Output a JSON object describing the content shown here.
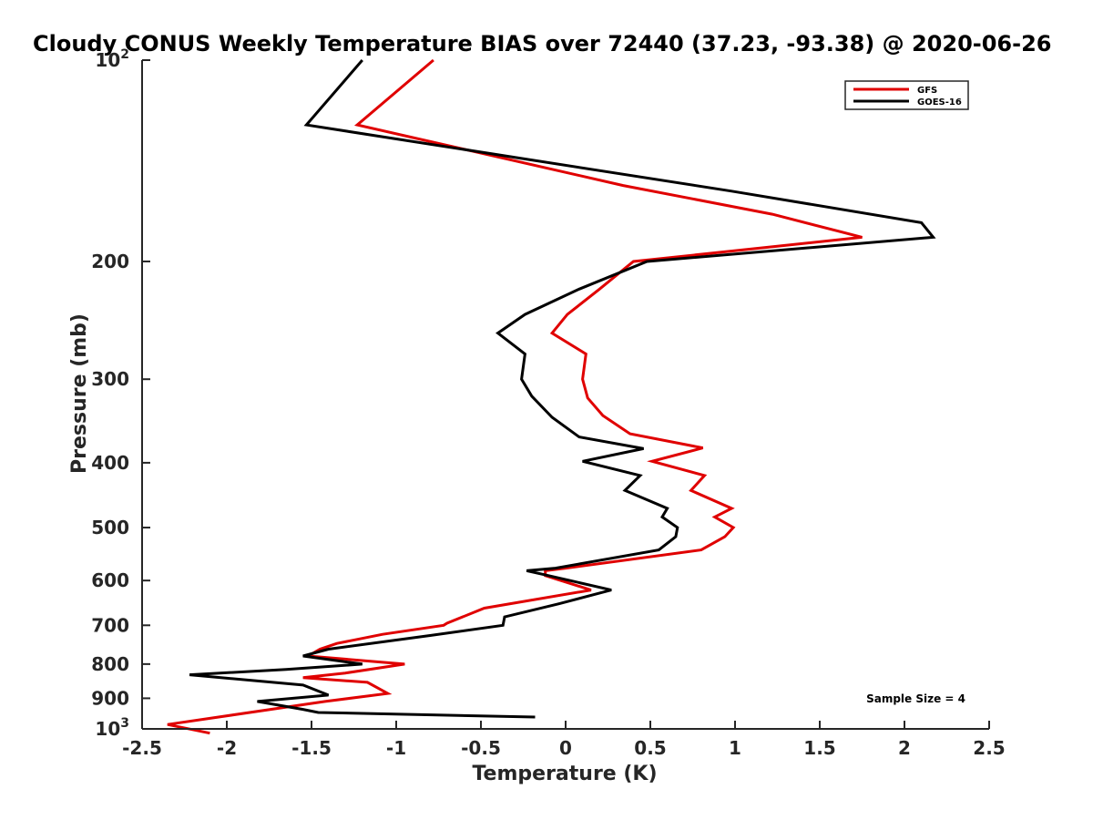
{
  "chart_data": {
    "type": "line",
    "title": "Cloudy CONUS Weekly Temperature BIAS over 72440 (37.23, -93.38) @ 2020-06-26",
    "xlabel": "Temperature (K)",
    "ylabel": "Pressure (mb)",
    "xlim": [
      -2.5,
      2.5
    ],
    "ylim": [
      100,
      1000
    ],
    "yscale": "log",
    "y_reversed": true,
    "grid": false,
    "legend_position": "top-right",
    "x_ticks": [
      "-2.5",
      "-2",
      "-1.5",
      "-1",
      "-0.5",
      "0",
      "0.5",
      "1",
      "1.5",
      "2",
      "2.5"
    ],
    "x_tick_values": [
      -2.5,
      -2,
      -1.5,
      -1,
      -0.5,
      0,
      0.5,
      1,
      1.5,
      2,
      2.5
    ],
    "y_ticks": [
      {
        "value": 100,
        "base": "10",
        "exp": "2"
      },
      {
        "value": 200,
        "label": "200"
      },
      {
        "value": 300,
        "label": "300"
      },
      {
        "value": 400,
        "label": "400"
      },
      {
        "value": 500,
        "label": "500"
      },
      {
        "value": 600,
        "label": "600"
      },
      {
        "value": 700,
        "label": "700"
      },
      {
        "value": 800,
        "label": "800"
      },
      {
        "value": 900,
        "label": "900"
      },
      {
        "value": 1000,
        "base": "10",
        "exp": "3"
      }
    ],
    "annotation": "Sample Size = 4",
    "series": [
      {
        "name": "GFS",
        "color": "#e00000",
        "points": [
          [
            -0.78,
            100
          ],
          [
            -1.23,
            125
          ],
          [
            0.34,
            154
          ],
          [
            1.22,
            170
          ],
          [
            1.75,
            184
          ],
          [
            0.4,
            200
          ],
          [
            0.2,
            220
          ],
          [
            0.01,
            240
          ],
          [
            -0.08,
            256
          ],
          [
            0.12,
            275
          ],
          [
            0.1,
            300
          ],
          [
            0.13,
            320
          ],
          [
            0.22,
            340
          ],
          [
            0.38,
            362
          ],
          [
            0.81,
            380
          ],
          [
            0.51,
            398
          ],
          [
            0.82,
            418
          ],
          [
            0.74,
            440
          ],
          [
            0.98,
            468
          ],
          [
            0.88,
            482
          ],
          [
            0.99,
            500
          ],
          [
            0.94,
            516
          ],
          [
            0.8,
            540
          ],
          [
            0.0,
            575
          ],
          [
            -0.12,
            580
          ],
          [
            -0.12,
            590
          ],
          [
            0.15,
            620
          ],
          [
            -0.48,
            660
          ],
          [
            -0.7,
            695
          ],
          [
            -0.72,
            700
          ],
          [
            -1.08,
            722
          ],
          [
            -1.35,
            745
          ],
          [
            -1.45,
            760
          ],
          [
            -1.52,
            778
          ],
          [
            -0.95,
            800
          ],
          [
            -1.3,
            825
          ],
          [
            -1.55,
            838
          ],
          [
            -1.17,
            852
          ],
          [
            -1.05,
            885
          ],
          [
            -1.42,
            910
          ],
          [
            -2.35,
            985
          ],
          [
            -2.1,
            1015
          ]
        ]
      },
      {
        "name": "GOES-16",
        "color": "#000000",
        "points": [
          [
            -1.2,
            100
          ],
          [
            -1.53,
            125
          ],
          [
            0.98,
            157
          ],
          [
            2.1,
            175
          ],
          [
            2.17,
            184
          ],
          [
            0.48,
            200
          ],
          [
            0.08,
            220
          ],
          [
            -0.24,
            240
          ],
          [
            -0.4,
            256
          ],
          [
            -0.24,
            275
          ],
          [
            -0.26,
            300
          ],
          [
            -0.2,
            318
          ],
          [
            -0.08,
            342
          ],
          [
            0.08,
            366
          ],
          [
            0.46,
            381
          ],
          [
            0.1,
            398
          ],
          [
            0.44,
            418
          ],
          [
            0.35,
            440
          ],
          [
            0.6,
            468
          ],
          [
            0.57,
            482
          ],
          [
            0.66,
            500
          ],
          [
            0.65,
            516
          ],
          [
            0.55,
            540
          ],
          [
            -0.06,
            575
          ],
          [
            -0.23,
            580
          ],
          [
            -0.1,
            590
          ],
          [
            0.27,
            620
          ],
          [
            -0.04,
            650
          ],
          [
            -0.36,
            680
          ],
          [
            -0.37,
            700
          ],
          [
            -0.8,
            725
          ],
          [
            -1.4,
            760
          ],
          [
            -1.55,
            778
          ],
          [
            -1.2,
            800
          ],
          [
            -1.65,
            815
          ],
          [
            -2.22,
            830
          ],
          [
            -1.55,
            860
          ],
          [
            -1.4,
            890
          ],
          [
            -1.82,
            910
          ],
          [
            -1.55,
            935
          ],
          [
            -1.46,
            945
          ],
          [
            -0.18,
            960
          ]
        ]
      }
    ]
  }
}
